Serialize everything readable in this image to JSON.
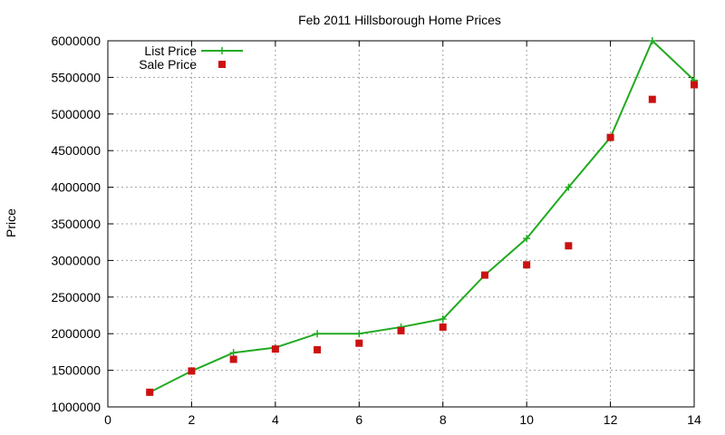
{
  "chart_data": {
    "type": "line",
    "title": "Feb 2011 Hillsborough Home Prices",
    "xlabel": "",
    "ylabel": "Price",
    "xlim": [
      0,
      14
    ],
    "ylim": [
      1000000,
      6000000
    ],
    "x_ticks": [
      0,
      2,
      4,
      6,
      8,
      10,
      12,
      14
    ],
    "y_ticks": [
      1000000,
      1500000,
      2000000,
      2500000,
      3000000,
      3500000,
      4000000,
      4500000,
      5000000,
      5500000,
      6000000
    ],
    "grid": true,
    "legend_position": "top-left",
    "series": [
      {
        "name": "List Price",
        "style": "line-with-plus-markers",
        "color": "#22aa22",
        "x": [
          1,
          2,
          3,
          4,
          5,
          6,
          7,
          8,
          9,
          10,
          11,
          12,
          13,
          14
        ],
        "y": [
          1200000,
          1490000,
          1740000,
          1810000,
          2000000,
          2000000,
          2090000,
          2200000,
          2800000,
          3300000,
          4000000,
          4680000,
          6000000,
          5460000
        ]
      },
      {
        "name": "Sale Price",
        "style": "square-markers",
        "color": "#cc1111",
        "x": [
          1,
          2,
          3,
          4,
          5,
          6,
          7,
          8,
          9,
          10,
          11,
          12,
          13,
          14
        ],
        "y": [
          1200000,
          1490000,
          1650000,
          1790000,
          1780000,
          1870000,
          2040000,
          2090000,
          2800000,
          2940000,
          3200000,
          4680000,
          5200000,
          5400000
        ]
      }
    ]
  }
}
